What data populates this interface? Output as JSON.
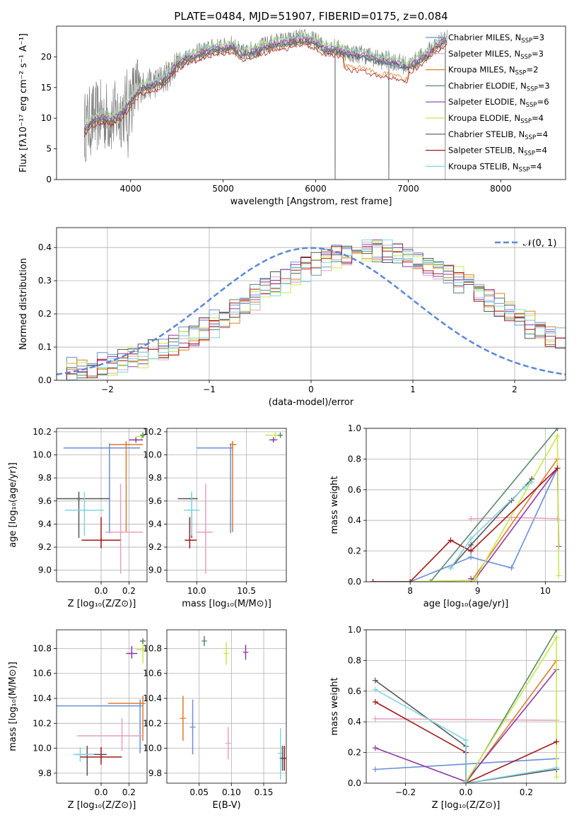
{
  "title": "PLATE=0484, MJD=51907, FIBERID=0175, z=0.084",
  "colors": {
    "chabrier_miles": "#6a8fd6",
    "salpeter_miles": "#e8a0bf",
    "kroupa_miles": "#e07b28",
    "chabrier_elodie": "#5a8a6a",
    "salpeter_elodie": "#8e3aa8",
    "kroupa_elodie": "#c8e84a",
    "chabrier_stelib": "#555555",
    "salpeter_stelib": "#a11a1a",
    "kroupa_stelib": "#7fd6e0",
    "spectrum": "#808080",
    "normal": "#5b87d6",
    "grid": "#b0b0b0"
  },
  "legend_entries": [
    {
      "key": "chabrier_miles",
      "label": "Chabrier MILES, N",
      "sub": "SSP",
      "n": "=3"
    },
    {
      "key": "salpeter_miles",
      "label": "Salpeter MILES, N",
      "sub": "SSP",
      "n": "=3"
    },
    {
      "key": "kroupa_miles",
      "label": "Kroupa MILES, N",
      "sub": "SSP",
      "n": "=2"
    },
    {
      "key": "chabrier_elodie",
      "label": "Chabrier ELODIE, N",
      "sub": "SSP",
      "n": "=3"
    },
    {
      "key": "salpeter_elodie",
      "label": "Salpeter ELODIE, N",
      "sub": "SSP",
      "n": "=6"
    },
    {
      "key": "kroupa_elodie",
      "label": "Kroupa ELODIE, N",
      "sub": "SSP",
      "n": "=4"
    },
    {
      "key": "chabrier_stelib",
      "label": "Chabrier STELIB, N",
      "sub": "SSP",
      "n": "=4"
    },
    {
      "key": "salpeter_stelib",
      "label": "Salpeter STELIB, N",
      "sub": "SSP",
      "n": "=4"
    },
    {
      "key": "kroupa_stelib",
      "label": "Kroupa STELIB, N",
      "sub": "SSP",
      "n": "=4"
    }
  ],
  "chart_data": [
    {
      "id": "spectrum",
      "type": "line",
      "xlabel": "wavelength [Angstrom, rest frame]",
      "ylabel": "Flux [fλ10⁻¹⁷ erg cm⁻² s⁻¹ A⁻¹]",
      "xlim": [
        3200,
        8700
      ],
      "ylim": [
        0,
        25
      ],
      "xticks": [
        4000,
        5000,
        6000,
        7000,
        8000
      ],
      "yticks": [
        0,
        5,
        10,
        15,
        20
      ],
      "grid": false,
      "legend_placement": "right",
      "continuum": {
        "x": [
          3500,
          3600,
          3700,
          3800,
          3900,
          4000,
          4100,
          4200,
          4300,
          4400,
          4500,
          4600,
          4700,
          4800,
          4900,
          5000,
          5100,
          5200,
          5300,
          5400,
          5500,
          5600,
          5700,
          5800,
          5900,
          6000,
          6100,
          6200,
          6300,
          6400,
          6500,
          6600,
          6700,
          6800,
          6900,
          7000,
          7100,
          7200,
          7300,
          7400
        ],
        "y": [
          8.5,
          10,
          10.5,
          10,
          11,
          13,
          15,
          15.5,
          16,
          17,
          19,
          20,
          20.5,
          21,
          21.5,
          21.5,
          22,
          20.5,
          21,
          21.5,
          22,
          22.5,
          22.5,
          23,
          23,
          22.5,
          21.5,
          21.5,
          21,
          20.5,
          20.5,
          20,
          19.5,
          19.5,
          19,
          18.5,
          19.5,
          20.5,
          22,
          23
        ]
      }
    },
    {
      "id": "residual_hist",
      "type": "line",
      "xlabel": "(data-model)/error",
      "ylabel": "Normed distribution",
      "xlim": [
        -2.5,
        2.5
      ],
      "ylim": [
        0,
        0.46
      ],
      "xticks": [
        -2,
        -1,
        0,
        1,
        2
      ],
      "yticks": [
        0.0,
        0.1,
        0.2,
        0.3,
        0.4
      ],
      "grid": true,
      "legend_placement": "top-right",
      "normal_label": "𝒩(0, 1)"
    },
    {
      "id": "age_vs_Z",
      "type": "scatter",
      "xlabel": "Z [log₁₀(Z/Z⊙)]",
      "ylabel": "age  [log₁₀(age/yr)]",
      "xlim": [
        -0.32,
        0.33
      ],
      "ylim": [
        8.9,
        10.23
      ],
      "xticks": [
        0.0,
        0.2
      ],
      "yticks": [
        9.0,
        9.2,
        9.4,
        9.6,
        9.8,
        10.0,
        10.2
      ],
      "points": [
        {
          "key": "chabrier_miles",
          "x": 0.06,
          "xerr": [
            0.33,
            0.22
          ],
          "y": 10.06,
          "yerr": [
            0.74,
            0.04
          ]
        },
        {
          "key": "kroupa_miles",
          "x": 0.18,
          "xerr": [
            0.12,
            0.12
          ],
          "y": 10.09,
          "yerr": [
            0.76,
            0.03
          ]
        },
        {
          "key": "salpeter_miles",
          "x": 0.14,
          "xerr": [
            0.11,
            0.16
          ],
          "y": 9.33,
          "yerr": [
            0.36,
            0.42
          ]
        },
        {
          "key": "kroupa_elodie",
          "x": 0.29,
          "xerr": [
            0.04,
            0.02
          ],
          "y": 10.16,
          "yerr": [
            0.03,
            0.02
          ]
        },
        {
          "key": "chabrier_elodie",
          "x": 0.3,
          "xerr": [
            0.01,
            0.01
          ],
          "y": 10.17,
          "yerr": [
            0.02,
            0.02
          ]
        },
        {
          "key": "salpeter_elodie",
          "x": 0.25,
          "xerr": [
            0.05,
            0.05
          ],
          "y": 10.13,
          "yerr": [
            0.02,
            0.02
          ]
        },
        {
          "key": "chabrier_stelib",
          "x": -0.16,
          "xerr": [
            0.16,
            0.22
          ],
          "y": 9.62,
          "yerr": [
            0.34,
            0.06
          ]
        },
        {
          "key": "kroupa_stelib",
          "x": -0.12,
          "xerr": [
            0.14,
            0.14
          ],
          "y": 9.52,
          "yerr": [
            0.22,
            0.16
          ]
        },
        {
          "key": "salpeter_stelib",
          "x": 0.0,
          "xerr": [
            0.14,
            0.14
          ],
          "y": 9.26,
          "yerr": [
            0.07,
            0.2
          ]
        }
      ]
    },
    {
      "id": "age_vs_mass",
      "type": "scatter",
      "xlabel": "mass [log₁₀(M/M⊙)]",
      "ylabel": "",
      "xlim": [
        9.7,
        10.9
      ],
      "ylim": [
        8.9,
        10.23
      ],
      "xticks": [
        10.0,
        10.5
      ],
      "yticks": [
        9.0,
        9.2,
        9.4,
        9.6,
        9.8,
        10.0,
        10.2
      ],
      "points": [
        {
          "key": "chabrier_miles",
          "x": 10.34,
          "xerr": [
            0.34,
            0.01
          ],
          "y": 10.06,
          "yerr": [
            0.74,
            0.04
          ]
        },
        {
          "key": "kroupa_miles",
          "x": 10.36,
          "xerr": [
            0.01,
            0.04
          ],
          "y": 10.09,
          "yerr": [
            0.76,
            0.03
          ]
        },
        {
          "key": "salpeter_miles",
          "x": 10.09,
          "xerr": [
            0.09,
            0.07
          ],
          "y": 9.33,
          "yerr": [
            0.36,
            0.42
          ]
        },
        {
          "key": "kroupa_elodie",
          "x": 10.79,
          "xerr": [
            0.1,
            0.06
          ],
          "y": 10.17,
          "yerr": [
            0.03,
            0.02
          ]
        },
        {
          "key": "chabrier_elodie",
          "x": 10.84,
          "xerr": [
            0.02,
            0.02
          ],
          "y": 10.17,
          "yerr": [
            0.02,
            0.02
          ]
        },
        {
          "key": "salpeter_elodie",
          "x": 10.77,
          "xerr": [
            0.04,
            0.04
          ],
          "y": 10.13,
          "yerr": [
            0.02,
            0.02
          ]
        },
        {
          "key": "chabrier_stelib",
          "x": 9.95,
          "xerr": [
            0.14,
            0.06
          ],
          "y": 9.62,
          "yerr": [
            0.34,
            0.06
          ]
        },
        {
          "key": "kroupa_stelib",
          "x": 9.95,
          "xerr": [
            0.08,
            0.08
          ],
          "y": 9.52,
          "yerr": [
            0.22,
            0.16
          ]
        },
        {
          "key": "salpeter_stelib",
          "x": 9.93,
          "xerr": [
            0.05,
            0.07
          ],
          "y": 9.26,
          "yerr": [
            0.07,
            0.2
          ]
        }
      ]
    },
    {
      "id": "mass_weight_vs_age",
      "type": "line",
      "xlabel": "age  [log₁₀(age/yr)]",
      "ylabel": "mass weight",
      "xlim": [
        7.35,
        10.3
      ],
      "ylim": [
        0,
        1.0
      ],
      "xticks": [
        8,
        9,
        10
      ],
      "yticks": [
        0.0,
        0.2,
        0.4,
        0.6,
        0.8,
        1.0
      ],
      "series": [
        {
          "key": "chabrier_miles",
          "x": [
            7.45,
            8.0,
            8.9,
            9.5,
            10.18
          ],
          "y": [
            0.0,
            0.0,
            0.16,
            0.09,
            0.74
          ]
        },
        {
          "key": "salpeter_miles",
          "x": [
            8.9,
            9.5,
            10.18
          ],
          "y": [
            0.41,
            0.42,
            0.41
          ]
        },
        {
          "key": "kroupa_miles",
          "x": [
            8.9,
            10.18
          ],
          "y": [
            0.0,
            0.8
          ]
        },
        {
          "key": "chabrier_elodie",
          "x": [
            8.3,
            10.18
          ],
          "y": [
            0.0,
            1.0
          ]
        },
        {
          "key": "salpeter_elodie",
          "x": [
            8.9,
            8.95,
            10.18,
            10.2
          ],
          "y": [
            0.02,
            0.01,
            0.74,
            0.23
          ]
        },
        {
          "key": "kroupa_elodie",
          "x": [
            8.0,
            8.95,
            10.18,
            10.2
          ],
          "y": [
            0.0,
            0.01,
            0.95,
            0.04
          ]
        },
        {
          "key": "chabrier_stelib",
          "x": [
            8.6,
            8.9,
            9.5,
            9.8
          ],
          "y": [
            0.09,
            0.24,
            0.53,
            0.67
          ]
        },
        {
          "key": "salpeter_stelib",
          "x": [
            7.45,
            8.0,
            8.6,
            8.9,
            10.18
          ],
          "y": [
            0.0,
            0.0,
            0.27,
            0.2,
            0.74
          ]
        },
        {
          "key": "kroupa_stelib",
          "x": [
            8.6,
            8.9,
            9.7,
            9.8
          ],
          "y": [
            0.09,
            0.28,
            0.62,
            0.65
          ]
        }
      ]
    },
    {
      "id": "mass_vs_Z",
      "type": "scatter",
      "xlabel": "Z [log₁₀(Z/Z⊙)]",
      "ylabel": "mass [log₁₀(M/M⊙)]",
      "xlim": [
        -0.32,
        0.33
      ],
      "ylim": [
        9.72,
        10.95
      ],
      "xticks": [
        0.0,
        0.2
      ],
      "yticks": [
        9.8,
        10.0,
        10.2,
        10.4,
        10.6,
        10.8
      ],
      "points": [
        {
          "key": "chabrier_miles",
          "x": 0.28,
          "xerr": [
            0.6,
            0.0
          ],
          "y": 10.34,
          "yerr": [
            0.38,
            0.05
          ]
        },
        {
          "key": "kroupa_miles",
          "x": 0.3,
          "xerr": [
            0.25,
            0.0
          ],
          "y": 10.36,
          "yerr": [
            0.3,
            0.06
          ]
        },
        {
          "key": "salpeter_miles",
          "x": 0.15,
          "xerr": [
            0.32,
            0.15
          ],
          "y": 10.1,
          "yerr": [
            0.12,
            0.14
          ]
        },
        {
          "key": "kroupa_elodie",
          "x": 0.3,
          "xerr": [
            0.05,
            0.02
          ],
          "y": 10.79,
          "yerr": [
            0.11,
            0.06
          ]
        },
        {
          "key": "chabrier_elodie",
          "x": 0.3,
          "xerr": [
            0.02,
            0.02
          ],
          "y": 10.86,
          "yerr": [
            0.02,
            0.02
          ]
        },
        {
          "key": "salpeter_elodie",
          "x": 0.22,
          "xerr": [
            0.04,
            0.04
          ],
          "y": 10.76,
          "yerr": [
            0.04,
            0.06
          ]
        },
        {
          "key": "chabrier_stelib",
          "x": -0.1,
          "xerr": [
            0.08,
            0.14
          ],
          "y": 9.95,
          "yerr": [
            0.17,
            0.07
          ]
        },
        {
          "key": "kroupa_stelib",
          "x": -0.15,
          "xerr": [
            0.05,
            0.1
          ],
          "y": 9.95,
          "yerr": [
            0.06,
            0.06
          ]
        },
        {
          "key": "salpeter_stelib",
          "x": 0.0,
          "xerr": [
            0.15,
            0.15
          ],
          "y": 9.93,
          "yerr": [
            0.06,
            0.08
          ]
        }
      ]
    },
    {
      "id": "mass_vs_ebv",
      "type": "scatter",
      "xlabel": "E(B-V)",
      "ylabel": "",
      "xlim": [
        0.0,
        0.185
      ],
      "ylim": [
        9.72,
        10.95
      ],
      "xticks": [
        0.05,
        0.1,
        0.15
      ],
      "yticks": [
        9.8,
        10.0,
        10.2,
        10.4,
        10.6,
        10.8
      ],
      "points": [
        {
          "key": "kroupa_miles",
          "x": 0.025,
          "xerr": [
            0,
            0
          ],
          "y": 10.24,
          "yerr": [
            0.18,
            0.18
          ]
        },
        {
          "key": "chabrier_miles",
          "x": 0.04,
          "xerr": [
            0,
            0
          ],
          "y": 10.17,
          "yerr": [
            0.22,
            0.22
          ]
        },
        {
          "key": "chabrier_elodie",
          "x": 0.058,
          "xerr": [
            0,
            0
          ],
          "y": 10.86,
          "yerr": [
            0.04,
            0.04
          ]
        },
        {
          "key": "kroupa_elodie",
          "x": 0.092,
          "xerr": [
            0,
            0
          ],
          "y": 10.76,
          "yerr": [
            0.09,
            0.09
          ]
        },
        {
          "key": "salpeter_miles",
          "x": 0.095,
          "xerr": [
            0,
            0
          ],
          "y": 10.04,
          "yerr": [
            0.13,
            0.13
          ]
        },
        {
          "key": "salpeter_elodie",
          "x": 0.122,
          "xerr": [
            0,
            0
          ],
          "y": 10.77,
          "yerr": [
            0.06,
            0.06
          ]
        },
        {
          "key": "kroupa_stelib",
          "x": 0.176,
          "xerr": [
            0,
            0
          ],
          "y": 9.96,
          "yerr": [
            0.21,
            0.2
          ]
        },
        {
          "key": "chabrier_stelib",
          "x": 0.179,
          "xerr": [
            0,
            0
          ],
          "y": 9.92,
          "yerr": [
            0.1,
            0.1
          ]
        },
        {
          "key": "salpeter_stelib",
          "x": 0.182,
          "xerr": [
            0,
            0
          ],
          "y": 9.92,
          "yerr": [
            0.1,
            0.1
          ]
        }
      ]
    },
    {
      "id": "mass_weight_vs_Z",
      "type": "line",
      "xlabel": "Z [log₁₀(Z/Z⊙)]",
      "ylabel": "mass weight",
      "xlim": [
        -0.33,
        0.33
      ],
      "ylim": [
        0,
        1.0
      ],
      "xticks": [
        -0.2,
        0.0,
        0.2
      ],
      "yticks": [
        0.0,
        0.2,
        0.4,
        0.6,
        0.8,
        1.0
      ],
      "series": [
        {
          "key": "chabrier_miles",
          "x": [
            -0.3,
            0.3
          ],
          "y": [
            0.09,
            0.16
          ]
        },
        {
          "key": "salpeter_miles",
          "x": [
            -0.3,
            0.3
          ],
          "y": [
            0.42,
            0.41
          ]
        },
        {
          "key": "kroupa_miles",
          "x": [
            0.0,
            0.3
          ],
          "y": [
            0.0,
            0.8
          ]
        },
        {
          "key": "chabrier_elodie",
          "x": [
            0.0,
            0.3
          ],
          "y": [
            0.0,
            1.0
          ]
        },
        {
          "key": "salpeter_elodie",
          "x": [
            -0.3,
            0.0,
            0.3
          ],
          "y": [
            0.23,
            0.01,
            0.74
          ]
        },
        {
          "key": "kroupa_elodie",
          "x": [
            0.0,
            0.3,
            0.3
          ],
          "y": [
            0.01,
            0.95,
            0.04
          ]
        },
        {
          "key": "chabrier_stelib",
          "x": [
            -0.3,
            0.0,
            0.0,
            0.3
          ],
          "y": [
            0.67,
            0.24,
            0.0,
            0.09
          ]
        },
        {
          "key": "salpeter_stelib",
          "x": [
            -0.3,
            0.0,
            0.0,
            0.3
          ],
          "y": [
            0.53,
            0.2,
            0.0,
            0.27
          ]
        },
        {
          "key": "kroupa_stelib",
          "x": [
            -0.3,
            0.0,
            0.0,
            0.3
          ],
          "y": [
            0.61,
            0.28,
            0.0,
            0.1
          ]
        }
      ]
    }
  ]
}
